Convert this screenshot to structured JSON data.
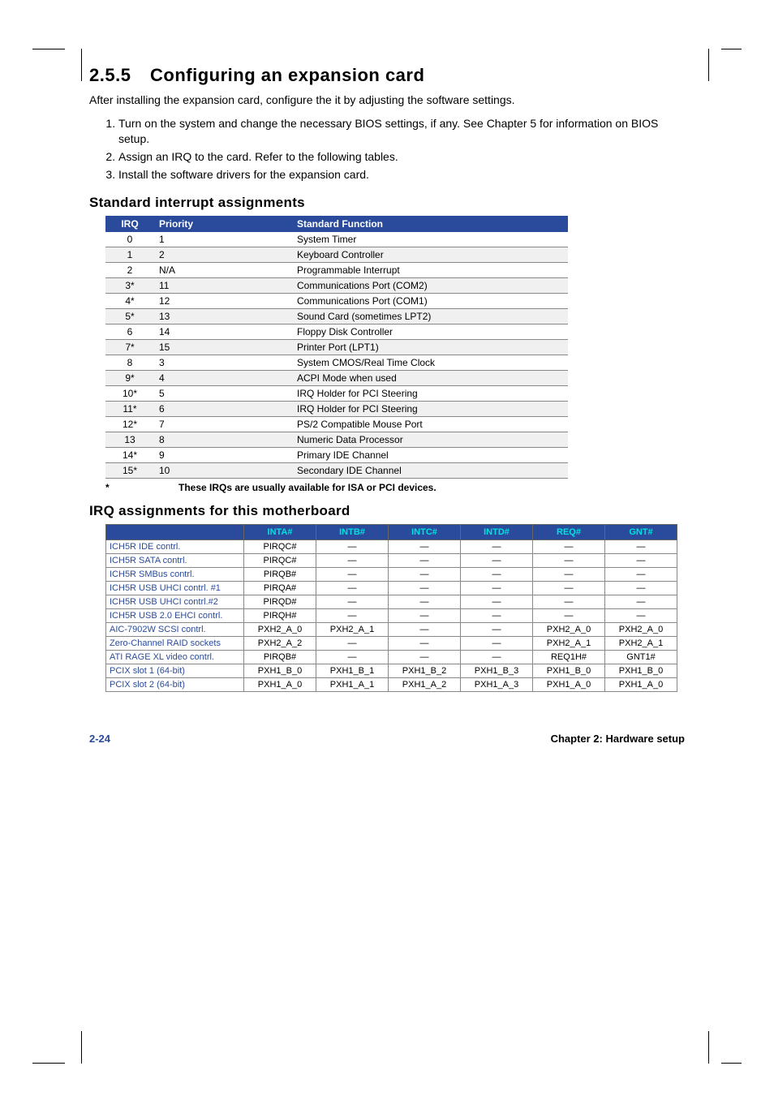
{
  "section": {
    "number": "2.5.5",
    "title": "Configuring an expansion card"
  },
  "intro": "After installing the expansion card, configure the it by adjusting the software settings.",
  "steps": [
    "Turn on the system and change the necessary BIOS settings, if any. See Chapter 5 for information on BIOS setup.",
    "Assign an IRQ to the card. Refer to the following tables.",
    "Install the software drivers for the expansion card."
  ],
  "irq_heading": "Standard interrupt assignments",
  "irq_table": {
    "headers": [
      "IRQ",
      "Priority",
      "Standard Function"
    ],
    "rows": [
      [
        "0",
        "1",
        "System Timer"
      ],
      [
        "1",
        "2",
        "Keyboard Controller"
      ],
      [
        "2",
        "N/A",
        "Programmable Interrupt"
      ],
      [
        "3*",
        "11",
        "Communications Port (COM2)"
      ],
      [
        "4*",
        "12",
        "Communications Port (COM1)"
      ],
      [
        "5*",
        "13",
        "Sound Card (sometimes LPT2)"
      ],
      [
        "6",
        "14",
        "Floppy Disk Controller"
      ],
      [
        "7*",
        "15",
        "Printer Port (LPT1)"
      ],
      [
        "8",
        "3",
        "System CMOS/Real Time Clock"
      ],
      [
        "9*",
        "4",
        "ACPI Mode when used"
      ],
      [
        "10*",
        "5",
        "IRQ Holder for PCI Steering"
      ],
      [
        "11*",
        "6",
        "IRQ Holder for PCI Steering"
      ],
      [
        "12*",
        "7",
        "PS/2 Compatible Mouse Port"
      ],
      [
        "13",
        "8",
        "Numeric Data Processor"
      ],
      [
        "14*",
        "9",
        "Primary IDE Channel"
      ],
      [
        "15*",
        "10",
        "Secondary IDE Channel"
      ]
    ]
  },
  "footnote_star": "*",
  "footnote_text": "These IRQs are usually available for ISA or PCI devices.",
  "assign_heading": "IRQ assignments for this motherboard",
  "assign_table": {
    "headers": [
      "",
      "INTA#",
      "INTB#",
      "INTC#",
      "INTD#",
      "REQ#",
      "GNT#"
    ],
    "rows": [
      [
        "ICH5R IDE contrl.",
        "PIRQC#",
        "—",
        "—",
        "—",
        "—",
        "—"
      ],
      [
        "ICH5R SATA contrl.",
        "PIRQC#",
        "—",
        "—",
        "—",
        "—",
        "—"
      ],
      [
        "ICH5R SMBus contrl.",
        "PIRQB#",
        "—",
        "—",
        "—",
        "—",
        "—"
      ],
      [
        "ICH5R USB UHCI contrl. #1",
        "PIRQA#",
        "—",
        "—",
        "—",
        "—",
        "—"
      ],
      [
        "ICH5R USB UHCI contrl.#2",
        "PIRQD#",
        "—",
        "—",
        "—",
        "—",
        "—"
      ],
      [
        "ICH5R USB 2.0 EHCI contrl.",
        "PIRQH#",
        "—",
        "—",
        "—",
        "—",
        "—"
      ],
      [
        "AIC-7902W SCSI contrl.",
        "PXH2_A_0",
        "PXH2_A_1",
        "—",
        "—",
        "PXH2_A_0",
        "PXH2_A_0"
      ],
      [
        "Zero-Channel RAID sockets",
        "PXH2_A_2",
        "—",
        "—",
        "—",
        "PXH2_A_1",
        "PXH2_A_1"
      ],
      [
        "ATI RAGE XL video contrl.",
        "PIRQB#",
        "—",
        "—",
        "—",
        "REQ1H#",
        "GNT1#"
      ],
      [
        "PCIX slot 1 (64-bit)",
        "PXH1_B_0",
        "PXH1_B_1",
        "PXH1_B_2",
        "PXH1_B_3",
        "PXH1_B_0",
        "PXH1_B_0"
      ],
      [
        "PCIX slot 2 (64-bit)",
        "PXH1_A_0",
        "PXH1_A_1",
        "PXH1_A_2",
        "PXH1_A_3",
        "PXH1_A_0",
        "PXH1_A_0"
      ]
    ]
  },
  "footer": {
    "left": "2-24",
    "right": "Chapter 2:  Hardware setup"
  },
  "colors": {
    "header_bg": "#2a4b9b",
    "header_text_white": "#ffffff",
    "header_text_cyan": "#00e0e0",
    "row_alt": "#f0f0f0",
    "row_label": "#2a4b9b"
  }
}
